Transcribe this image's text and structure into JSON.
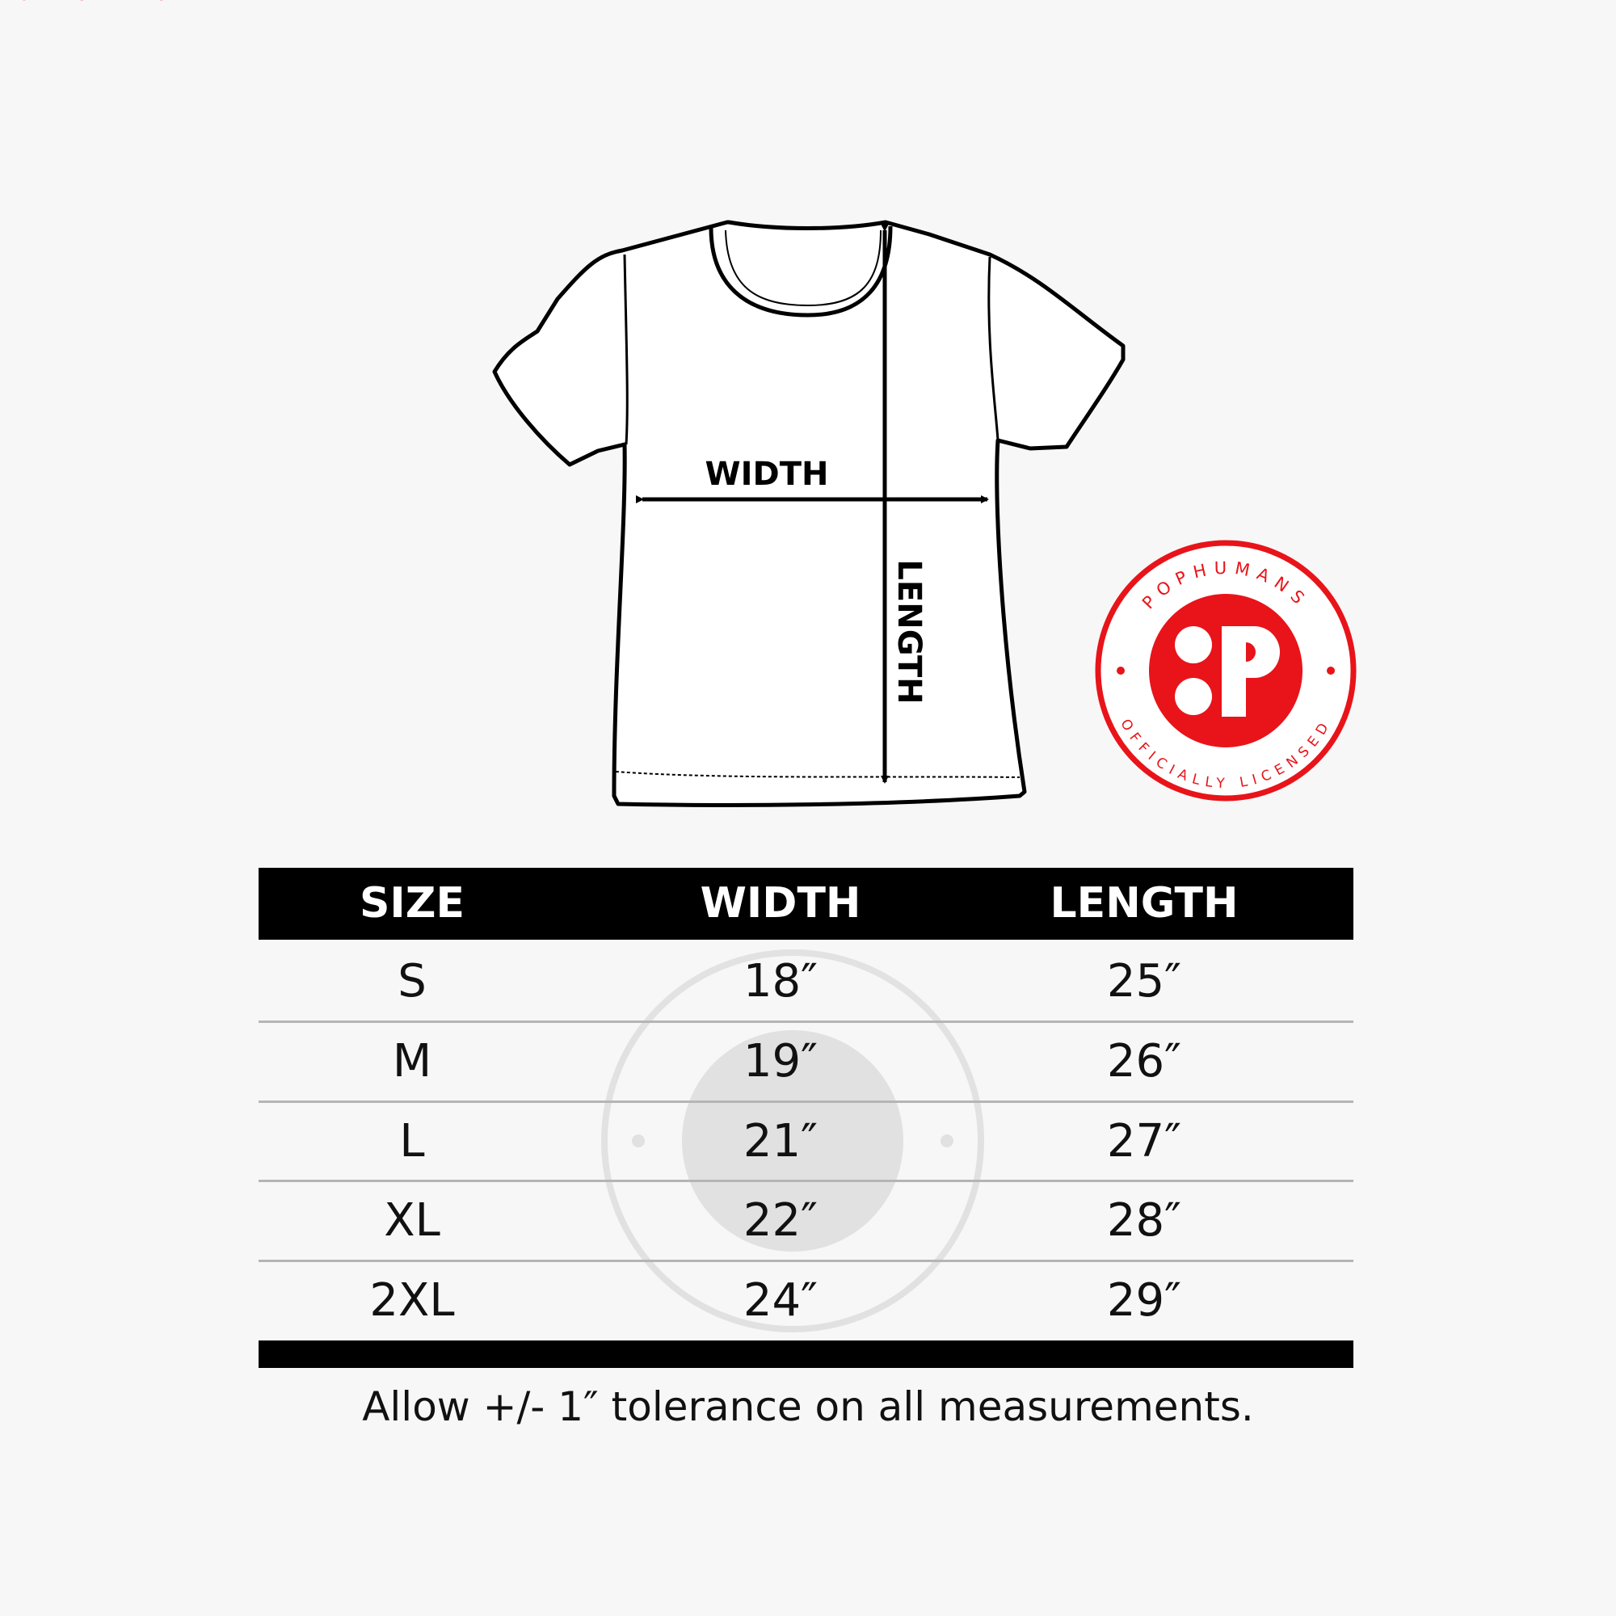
{
  "diagram": {
    "width_label": "WIDTH",
    "length_label": "LENGTH"
  },
  "badge": {
    "brand": "POPHUMANS",
    "tagline": "OFFICIALLY LICENSED",
    "color": "#e8141a"
  },
  "table": {
    "headers": [
      "SIZE",
      "WIDTH",
      "LENGTH"
    ],
    "rows": [
      {
        "size": "S",
        "width": "18″",
        "length": "25″"
      },
      {
        "size": "M",
        "width": "19″",
        "length": "26″"
      },
      {
        "size": "L",
        "width": "21″",
        "length": "27″"
      },
      {
        "size": "XL",
        "width": "22″",
        "length": "28″"
      },
      {
        "size": "2XL",
        "width": "24″",
        "length": "29″"
      }
    ]
  },
  "footnote": "Allow +/- 1″ tolerance on all measurements."
}
